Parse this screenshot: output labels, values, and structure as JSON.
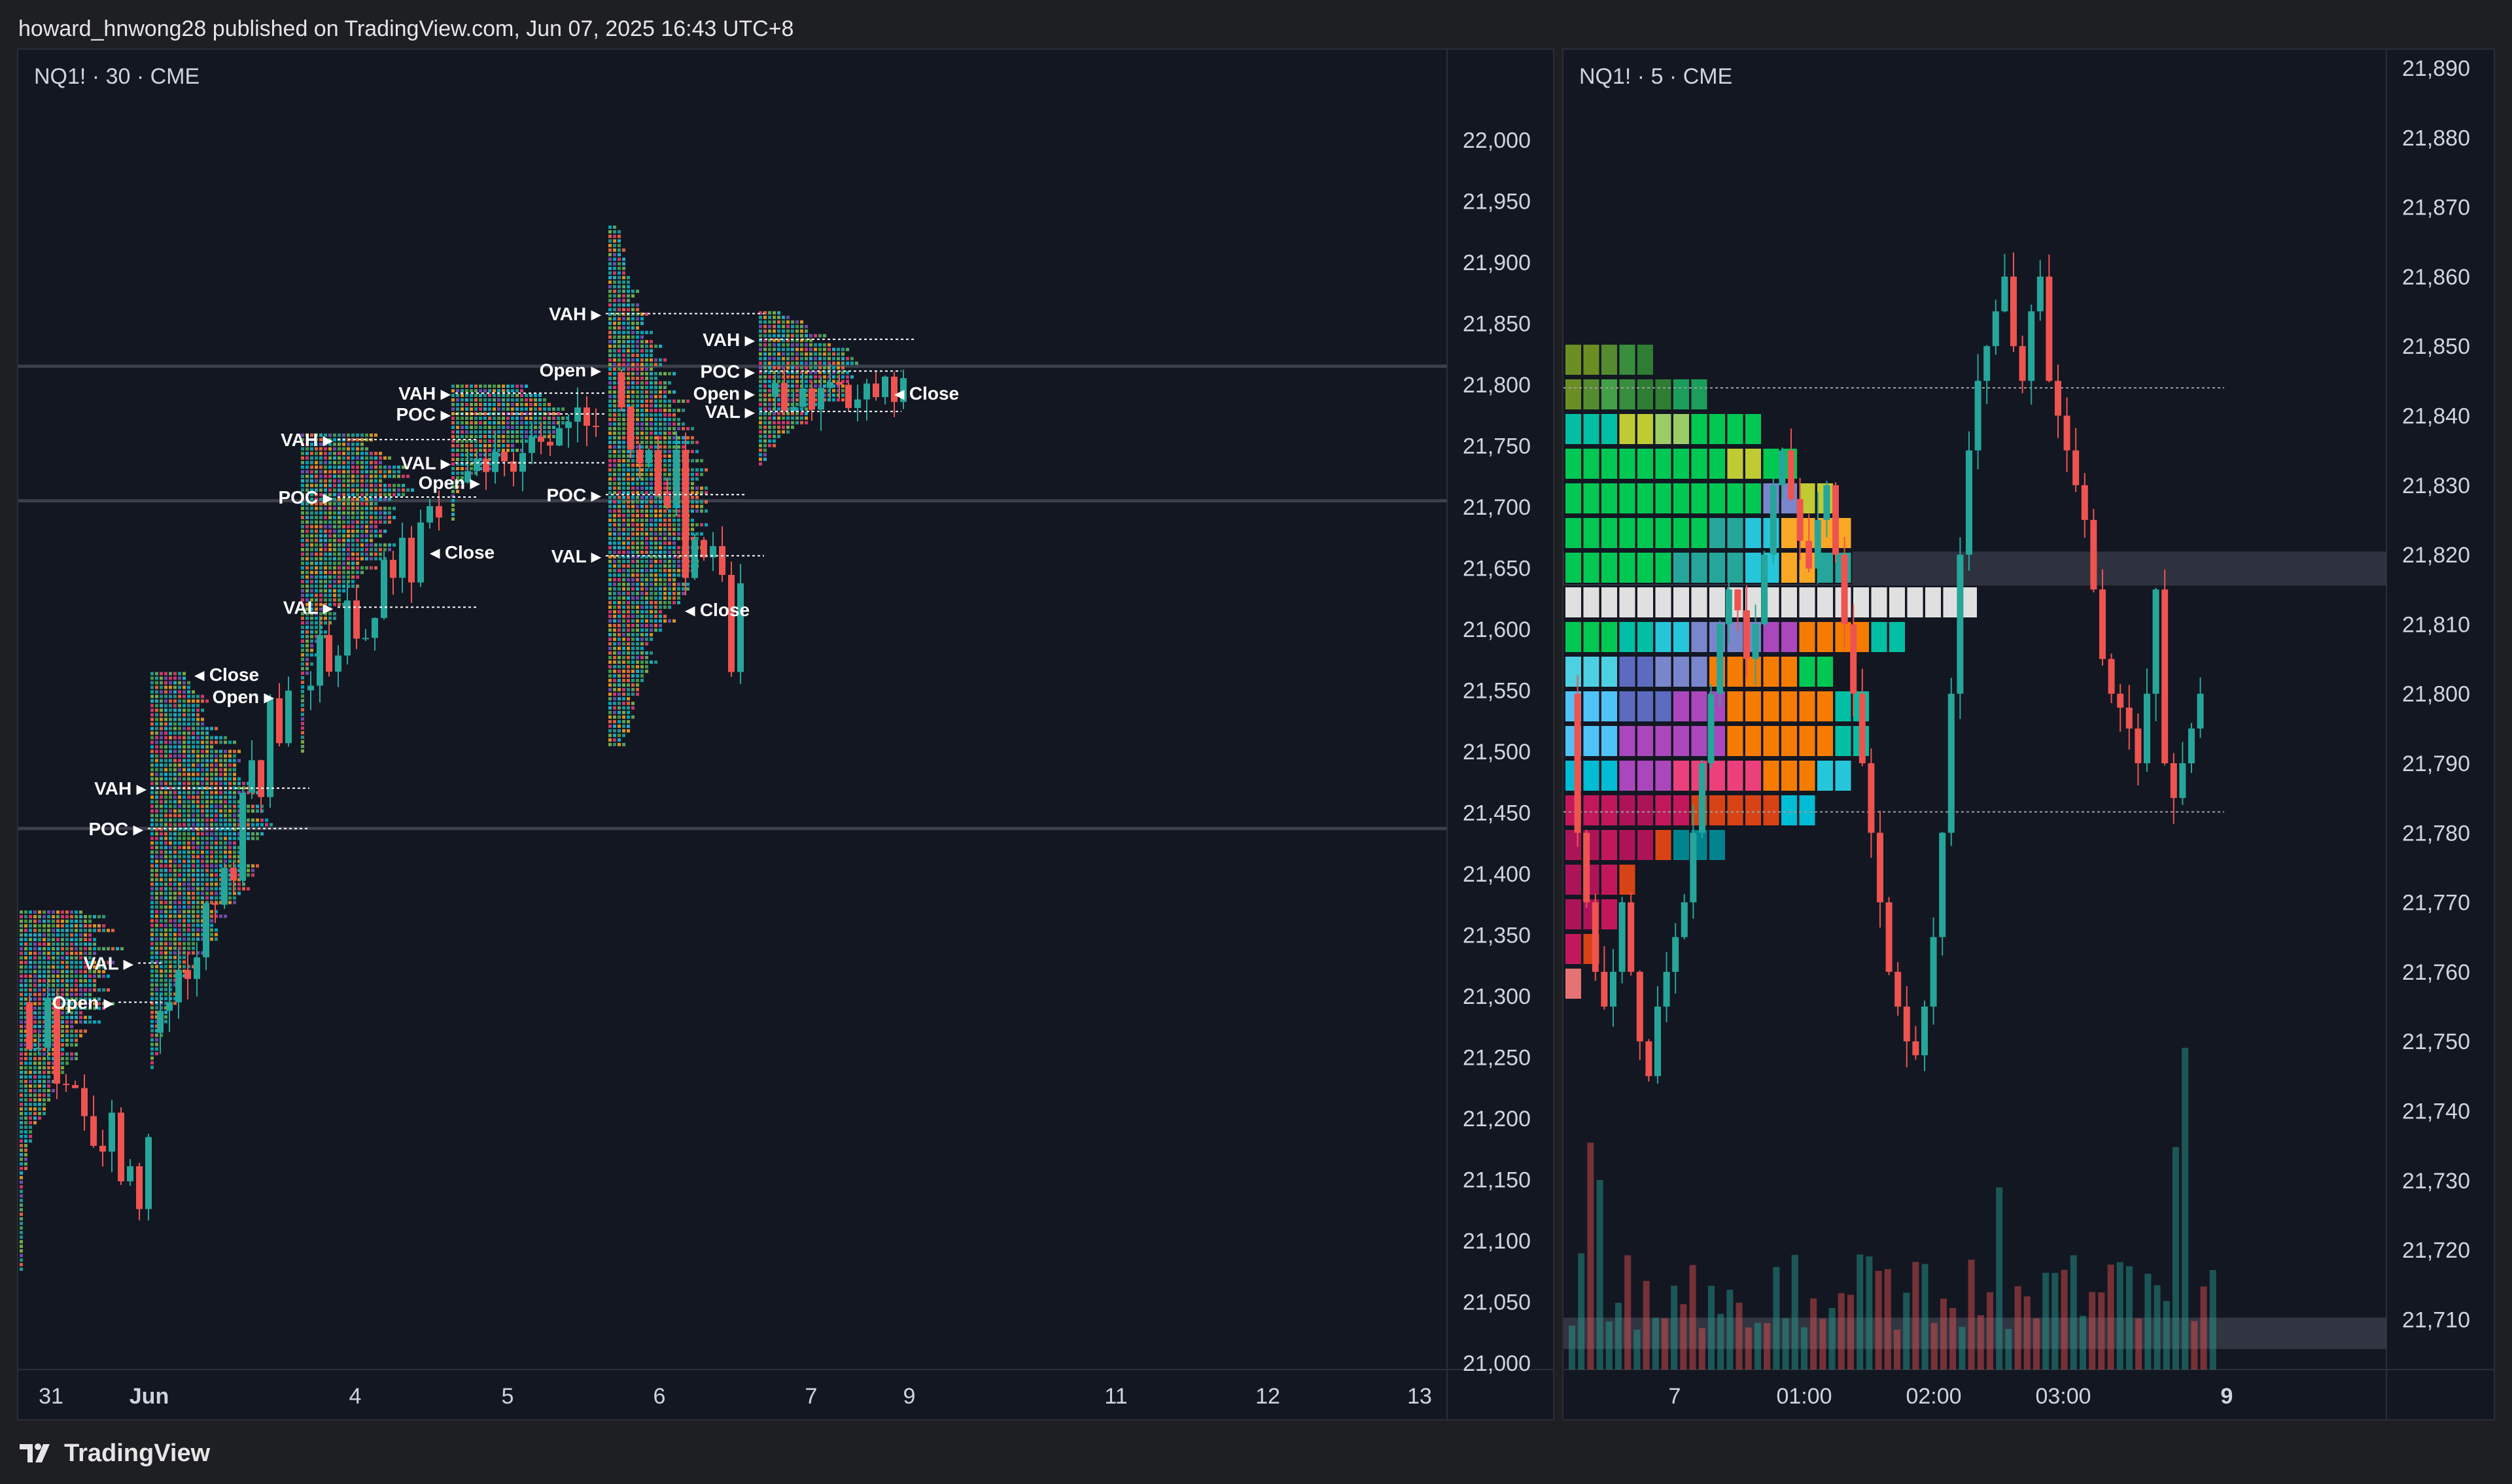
{
  "header": {
    "text": "howard_hnwong28 published on TradingView.com, Jun 07, 2025 16:43 UTC+8"
  },
  "footer": {
    "brand": "TradingView"
  },
  "colors": {
    "background": "#131722",
    "up": "#26a69a",
    "down": "#ef5350",
    "grid_line": "#3a3f4b",
    "text": "#d1d4dc"
  },
  "chart_data": [
    {
      "type": "candlestick",
      "title": "NQ1! · 30 · CME",
      "y_ticks": [
        22000,
        21950,
        21900,
        21850,
        21800,
        21750,
        21700,
        21650,
        21600,
        21550,
        21500,
        21450,
        21400,
        21350,
        21300,
        21250,
        21200,
        21150,
        21100,
        21050,
        21000
      ],
      "ylim": [
        20960,
        22040
      ],
      "x_ticks": [
        "31",
        "Jun",
        "4",
        "5",
        "6",
        "7",
        "9",
        "11",
        "12",
        "13"
      ],
      "horizontal_levels": [
        21815,
        21705,
        21437
      ],
      "sessions": [
        {
          "labels": {
            "VAL": 21327,
            "Open": 21295,
            "VAH": 21470,
            "POC": 21437,
            "Close": 21563
          }
        },
        {
          "labels": {
            "Open": 21545,
            "VAH": 21755,
            "POC": 21708,
            "VAL": 21618,
            "Close": 21663
          }
        },
        {
          "labels": {
            "VAH": 21793,
            "POC": 21776,
            "VAL": 21736,
            "Open": 21720
          }
        },
        {
          "labels": {
            "VAH": 21858,
            "Open": 21812,
            "POC": 21710,
            "VAL": 21660,
            "Close": 21616
          }
        },
        {
          "labels": {
            "VAH": 21837,
            "POC": 21811,
            "Open": 21793,
            "VAL": 21778,
            "Close": 21793
          }
        }
      ]
    },
    {
      "type": "candlestick",
      "title": "NQ1! · 5 · CME",
      "y_ticks": [
        21890,
        21880,
        21870,
        21860,
        21850,
        21840,
        21830,
        21820,
        21810,
        21800,
        21790,
        21780,
        21770,
        21760,
        21750,
        21740,
        21730,
        21720,
        21710
      ],
      "ylim": [
        21702,
        21894
      ],
      "x_ticks": [
        "7",
        "01:00",
        "02:00",
        "03:00",
        "9"
      ],
      "poc_level": 21818,
      "value_area": [
        21844,
        21783
      ],
      "price_tag": 21708
    }
  ]
}
